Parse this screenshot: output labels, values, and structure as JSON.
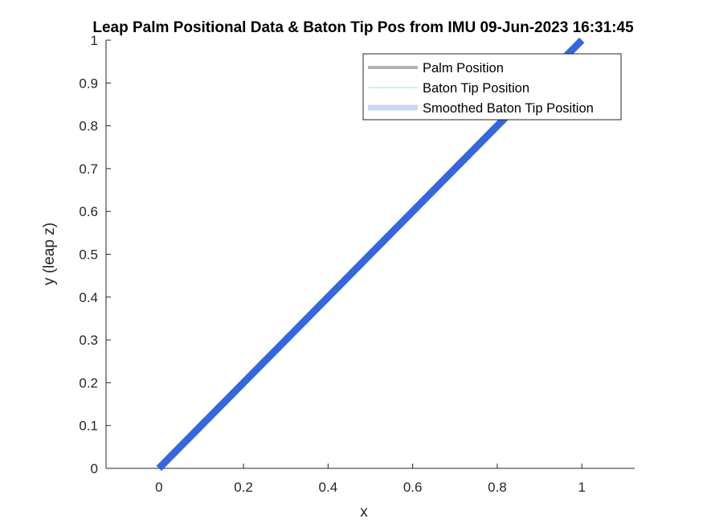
{
  "chart_data": {
    "type": "line",
    "title": "Leap Palm Positional Data & Baton Tip Pos from IMU 09-Jun-2023 16:31:45",
    "xlabel": "x",
    "ylabel": "y (leap z)",
    "xlim": [
      -0.125,
      1.125
    ],
    "ylim": [
      0,
      1
    ],
    "xticks": [
      0,
      0.2,
      0.4,
      0.6,
      0.8,
      1
    ],
    "xtick_labels": [
      "0",
      "0.2",
      "0.4",
      "0.6",
      "0.8",
      "1"
    ],
    "yticks": [
      0,
      0.1,
      0.2,
      0.3,
      0.4,
      0.5,
      0.6,
      0.7,
      0.8,
      0.9,
      1
    ],
    "ytick_labels": [
      "0",
      "0.1",
      "0.2",
      "0.3",
      "0.4",
      "0.5",
      "0.6",
      "0.7",
      "0.8",
      "0.9",
      "1"
    ],
    "grid": false,
    "legend_position": "top-right",
    "series": [
      {
        "name": "Palm Position",
        "color": "#b3b3b3",
        "style": "thick",
        "x": [],
        "y": []
      },
      {
        "name": "Baton Tip Position",
        "color": "#a6d9e6",
        "style": "thin",
        "x": [],
        "y": []
      },
      {
        "name": "Smoothed Baton Tip Position",
        "color": "#c9d8f5",
        "style": "thick",
        "x": [],
        "y": []
      }
    ],
    "plotted_line": {
      "color": "#3366e0",
      "x": [
        0,
        1
      ],
      "y": [
        0,
        1
      ]
    }
  }
}
